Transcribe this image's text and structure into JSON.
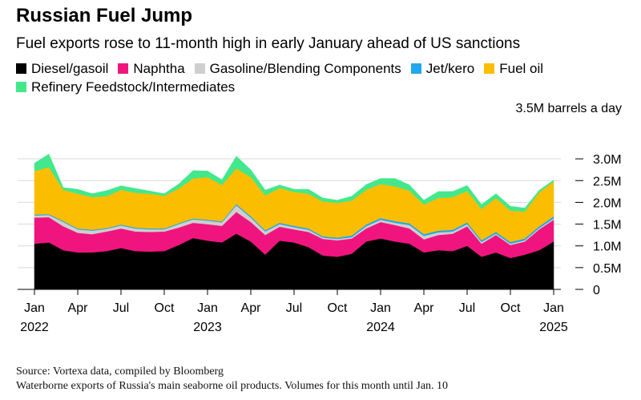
{
  "title": "Russian Fuel Jump",
  "subtitle": "Fuel exports rose to 11-month high in early January ahead of US sanctions",
  "unit_label": "3.5M barrels a day",
  "source": "Source: Vortexa data, compiled by Bloomberg",
  "note": "Waterborne exports of Russia's main seaborne oil products. Volumes for this month until Jan. 10",
  "colors": {
    "diesel": "#000000",
    "naphtha": "#f0157e",
    "gasoline": "#cfcfcf",
    "jet": "#22a7ec",
    "fuel_oil": "#fbbd00",
    "feedstock": "#43e88c"
  },
  "chart_data": {
    "type": "area",
    "stacked": true,
    "unit": "million barrels a day",
    "ylim": [
      0,
      3.5
    ],
    "yticks": [
      {
        "value": 0,
        "label": "0"
      },
      {
        "value": 0.5,
        "label": "0.5M"
      },
      {
        "value": 1.0,
        "label": "1.0M"
      },
      {
        "value": 1.5,
        "label": "1.5M"
      },
      {
        "value": 2.0,
        "label": "2.0M"
      },
      {
        "value": 2.5,
        "label": "2.5M"
      },
      {
        "value": 3.0,
        "label": "3.0M"
      }
    ],
    "xticks": [
      {
        "month": "2022-01",
        "label": "Jan",
        "year": "2022"
      },
      {
        "month": "2022-04",
        "label": "Apr",
        "year": ""
      },
      {
        "month": "2022-07",
        "label": "Jul",
        "year": ""
      },
      {
        "month": "2022-10",
        "label": "Oct",
        "year": ""
      },
      {
        "month": "2023-01",
        "label": "Jan",
        "year": "2023"
      },
      {
        "month": "2023-04",
        "label": "Apr",
        "year": ""
      },
      {
        "month": "2023-07",
        "label": "Jul",
        "year": ""
      },
      {
        "month": "2023-10",
        "label": "Oct",
        "year": ""
      },
      {
        "month": "2024-01",
        "label": "Jan",
        "year": "2024"
      },
      {
        "month": "2024-04",
        "label": "Apr",
        "year": ""
      },
      {
        "month": "2024-07",
        "label": "Jul",
        "year": ""
      },
      {
        "month": "2024-10",
        "label": "Oct",
        "year": ""
      },
      {
        "month": "2025-01",
        "label": "Jan",
        "year": "2025"
      }
    ],
    "x": [
      "2022-01",
      "2022-02",
      "2022-03",
      "2022-04",
      "2022-05",
      "2022-06",
      "2022-07",
      "2022-08",
      "2022-09",
      "2022-10",
      "2022-11",
      "2022-12",
      "2023-01",
      "2023-02",
      "2023-03",
      "2023-04",
      "2023-05",
      "2023-06",
      "2023-07",
      "2023-08",
      "2023-09",
      "2023-10",
      "2023-11",
      "2023-12",
      "2024-01",
      "2024-02",
      "2024-03",
      "2024-04",
      "2024-05",
      "2024-06",
      "2024-07",
      "2024-08",
      "2024-09",
      "2024-10",
      "2024-11",
      "2024-12",
      "2025-01"
    ],
    "series": [
      {
        "name": "Diesel/gasoil",
        "color_key": "diesel",
        "values": [
          1.05,
          1.08,
          0.9,
          0.85,
          0.85,
          0.88,
          0.95,
          0.88,
          0.87,
          0.88,
          1.02,
          1.18,
          1.12,
          1.08,
          1.28,
          1.1,
          0.8,
          1.12,
          1.08,
          0.97,
          0.78,
          0.75,
          0.82,
          1.1,
          1.17,
          1.1,
          1.05,
          0.85,
          0.9,
          0.88,
          1.0,
          0.75,
          0.85,
          0.72,
          0.8,
          0.9,
          1.1
        ]
      },
      {
        "name": "Naphtha",
        "color_key": "naphtha",
        "values": [
          0.6,
          0.58,
          0.55,
          0.45,
          0.42,
          0.45,
          0.45,
          0.45,
          0.45,
          0.45,
          0.4,
          0.35,
          0.38,
          0.38,
          0.5,
          0.45,
          0.45,
          0.32,
          0.3,
          0.35,
          0.38,
          0.38,
          0.35,
          0.3,
          0.38,
          0.38,
          0.35,
          0.3,
          0.35,
          0.4,
          0.45,
          0.3,
          0.4,
          0.3,
          0.3,
          0.48,
          0.5
        ]
      },
      {
        "name": "Gasoline/Blending Components",
        "color_key": "gasoline",
        "values": [
          0.05,
          0.05,
          0.1,
          0.08,
          0.08,
          0.06,
          0.07,
          0.07,
          0.06,
          0.05,
          0.08,
          0.08,
          0.08,
          0.08,
          0.15,
          0.1,
          0.08,
          0.06,
          0.05,
          0.05,
          0.03,
          0.03,
          0.03,
          0.05,
          0.05,
          0.05,
          0.08,
          0.08,
          0.06,
          0.05,
          0.05,
          0.04,
          0.03,
          0.03,
          0.03,
          0.03,
          0.03
        ]
      },
      {
        "name": "Jet/kero",
        "color_key": "jet",
        "values": [
          0.02,
          0.02,
          0.02,
          0.02,
          0.02,
          0.02,
          0.02,
          0.02,
          0.02,
          0.02,
          0.02,
          0.02,
          0.02,
          0.02,
          0.03,
          0.03,
          0.03,
          0.03,
          0.03,
          0.03,
          0.03,
          0.03,
          0.04,
          0.04,
          0.04,
          0.04,
          0.04,
          0.04,
          0.04,
          0.04,
          0.04,
          0.04,
          0.04,
          0.04,
          0.04,
          0.04,
          0.05
        ]
      },
      {
        "name": "Fuel oil",
        "color_key": "fuel_oil",
        "values": [
          1.0,
          1.08,
          0.72,
          0.8,
          0.75,
          0.73,
          0.8,
          0.8,
          0.8,
          0.75,
          0.8,
          0.92,
          0.98,
          0.84,
          0.82,
          0.9,
          0.8,
          0.8,
          0.78,
          0.8,
          0.8,
          0.8,
          0.8,
          0.8,
          0.78,
          0.8,
          0.75,
          0.68,
          0.75,
          0.75,
          0.72,
          0.72,
          0.78,
          0.72,
          0.62,
          0.78,
          0.8
        ]
      },
      {
        "name": "Refinery Feedstock/Intermediates",
        "color_key": "feedstock",
        "values": [
          0.18,
          0.3,
          0.05,
          0.1,
          0.08,
          0.13,
          0.09,
          0.1,
          0.06,
          0.05,
          0.1,
          0.18,
          0.14,
          0.12,
          0.28,
          0.17,
          0.12,
          0.07,
          0.06,
          0.1,
          0.08,
          0.06,
          0.1,
          0.12,
          0.13,
          0.18,
          0.13,
          0.1,
          0.15,
          0.13,
          0.13,
          0.1,
          0.1,
          0.1,
          0.08,
          0.05,
          0.03
        ]
      }
    ]
  }
}
